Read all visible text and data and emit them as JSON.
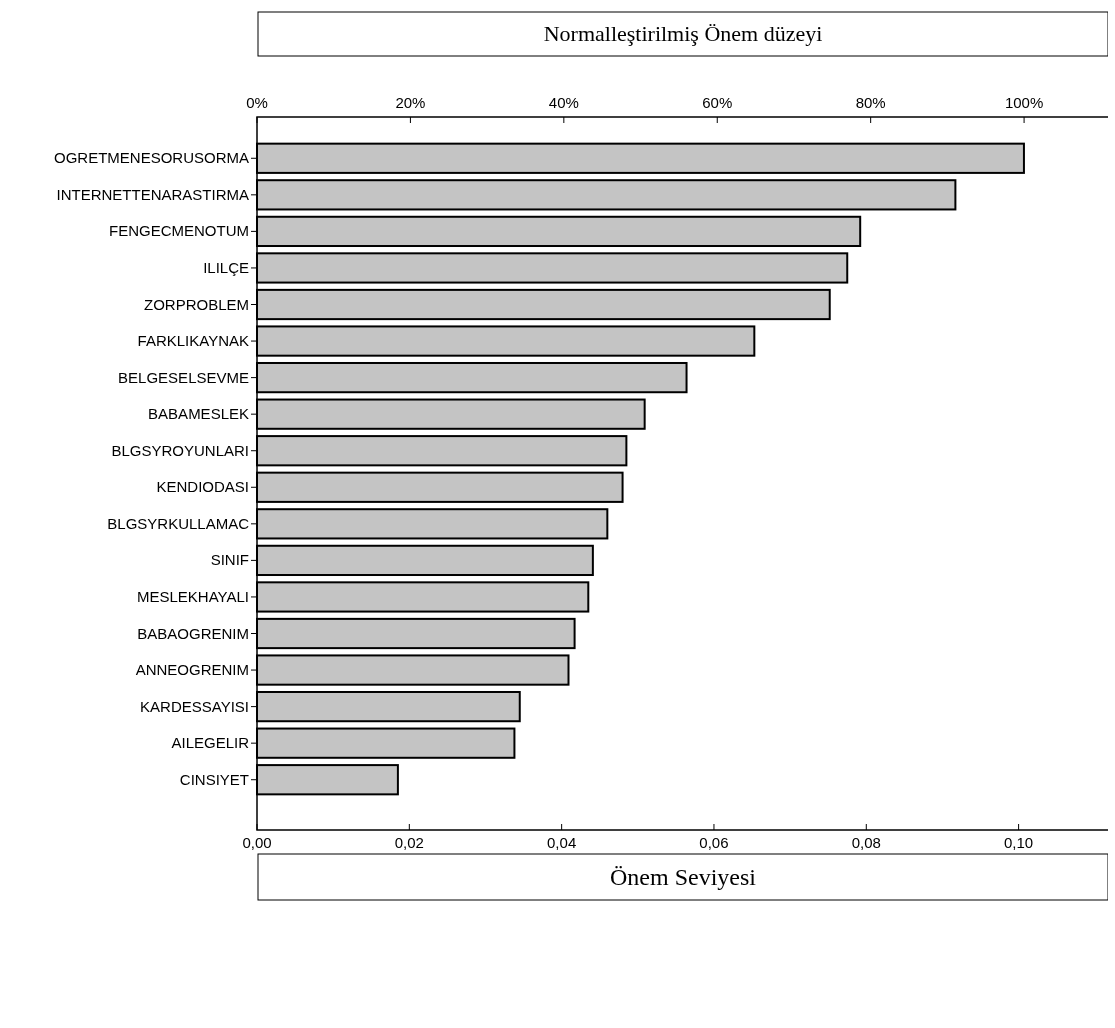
{
  "chart_data": {
    "type": "bar",
    "orientation": "horizontal",
    "xlabel": "Önem Seviyesi",
    "x2label": "Normalleştirilmiş Önem düzeyi",
    "categories": [
      "OGRETMENESORUSORMA",
      "INTERNETTENARASTIRMA",
      "FENGECMENOTUM",
      "ILILÇE",
      "ZORPROBLEM",
      "FARKLIKAYNAK",
      "BELGESELSEVME",
      "BABAMESLEK",
      "BLGSYROYUNLARI",
      "KENDIODASI",
      "BLGSYRKULLAMAC",
      "SINIF",
      "MESLEKHAYALI",
      "BABAOGRENIM",
      "ANNEOGRENIM",
      "KARDESSAYISI",
      "AILEGELIR",
      "CINSIYET"
    ],
    "values": [
      0.1007,
      0.0917,
      0.0792,
      0.0775,
      0.0752,
      0.0653,
      0.0564,
      0.0509,
      0.0485,
      0.048,
      0.046,
      0.0441,
      0.0435,
      0.0417,
      0.0409,
      0.0345,
      0.0338,
      0.0185
    ],
    "color": "#c4c4c4",
    "xlim": [
      0,
      0.112
    ],
    "xticks": [
      {
        "value": 0,
        "label": "0,00"
      },
      {
        "value": 0.02,
        "label": "0,02"
      },
      {
        "value": 0.04,
        "label": "0,04"
      },
      {
        "value": 0.06,
        "label": "0,06"
      },
      {
        "value": 0.08,
        "label": "0,08"
      },
      {
        "value": 0.1,
        "label": "0,10"
      }
    ],
    "x2lim": [
      0,
      111.2
    ],
    "x2ticks": [
      {
        "value": 0,
        "label": "0%"
      },
      {
        "value": 20,
        "label": "20%"
      },
      {
        "value": 40,
        "label": "40%"
      },
      {
        "value": 60,
        "label": "60%"
      },
      {
        "value": 80,
        "label": "80%"
      },
      {
        "value": 100,
        "label": "100%"
      }
    ]
  }
}
